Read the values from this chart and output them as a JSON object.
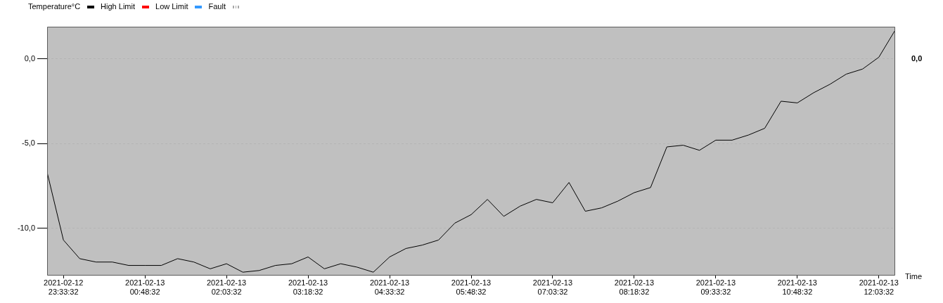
{
  "chart_data": {
    "type": "line",
    "xlabel": "Time",
    "legend": "top left",
    "grid": "y",
    "marker": "none",
    "x": [
      "2021-02-12T23:18:32",
      "2021-02-12T23:33:32",
      "2021-02-12T23:48:32",
      "2021-02-13T00:03:32",
      "2021-02-13T00:18:32",
      "2021-02-13T00:33:32",
      "2021-02-13T00:48:32",
      "2021-02-13T01:03:32",
      "2021-02-13T01:18:32",
      "2021-02-13T01:33:32",
      "2021-02-13T01:48:32",
      "2021-02-13T02:03:32",
      "2021-02-13T02:18:32",
      "2021-02-13T02:33:32",
      "2021-02-13T02:48:32",
      "2021-02-13T03:03:32",
      "2021-02-13T03:18:32",
      "2021-02-13T03:33:32",
      "2021-02-13T03:48:32",
      "2021-02-13T04:03:32",
      "2021-02-13T04:18:32",
      "2021-02-13T04:33:32",
      "2021-02-13T04:48:32",
      "2021-02-13T05:03:32",
      "2021-02-13T05:18:32",
      "2021-02-13T05:33:32",
      "2021-02-13T05:48:32",
      "2021-02-13T06:03:32",
      "2021-02-13T06:18:32",
      "2021-02-13T06:33:32",
      "2021-02-13T06:48:32",
      "2021-02-13T07:03:32",
      "2021-02-13T07:18:32",
      "2021-02-13T07:33:32",
      "2021-02-13T07:48:32",
      "2021-02-13T08:03:32",
      "2021-02-13T08:18:32",
      "2021-02-13T08:33:32",
      "2021-02-13T08:48:32",
      "2021-02-13T09:03:32",
      "2021-02-13T09:18:32",
      "2021-02-13T09:33:32",
      "2021-02-13T09:48:32",
      "2021-02-13T10:03:32",
      "2021-02-13T10:18:32",
      "2021-02-13T10:33:32",
      "2021-02-13T10:48:32",
      "2021-02-13T11:03:32",
      "2021-02-13T11:18:32",
      "2021-02-13T11:33:32",
      "2021-02-13T11:48:32",
      "2021-02-13T12:03:32",
      "2021-02-13T12:18:32"
    ],
    "series": [
      {
        "name": "Temperature°C",
        "color": "#000000",
        "values": [
          -6.7,
          -10.7,
          -11.8,
          -12.0,
          -12.0,
          -12.2,
          -12.2,
          -12.2,
          -11.8,
          -12.0,
          -12.4,
          -12.1,
          -12.6,
          -12.5,
          -12.2,
          -12.1,
          -11.7,
          -12.4,
          -12.1,
          -12.3,
          -12.6,
          -11.7,
          -11.2,
          -11.0,
          -10.7,
          -9.7,
          -9.2,
          -8.3,
          -9.3,
          -8.7,
          -8.3,
          -8.5,
          -7.3,
          -9.0,
          -8.8,
          -8.4,
          -7.9,
          -7.6,
          -5.2,
          -5.1,
          -5.4,
          -4.8,
          -4.8,
          -4.5,
          -4.1,
          -2.5,
          -2.6,
          -2.0,
          -1.5,
          -0.9,
          -0.6,
          0.1,
          1.7
        ]
      },
      {
        "name": "High Limit",
        "color": "#ff0000",
        "values": [
          null,
          null,
          null,
          null,
          null,
          null,
          null,
          null,
          null,
          null,
          null,
          null,
          null,
          null,
          null,
          null,
          null,
          null,
          null,
          null,
          null,
          null,
          null,
          null,
          null,
          null,
          null,
          null,
          null,
          null,
          null,
          null,
          null,
          null,
          null,
          null,
          null,
          null,
          null,
          null,
          null,
          null,
          null,
          null,
          null,
          null,
          null,
          null,
          null,
          null,
          null,
          null,
          null
        ]
      },
      {
        "name": "Low Limit",
        "color": "#3399ff",
        "values": [
          null,
          null,
          null,
          null,
          null,
          null,
          null,
          null,
          null,
          null,
          null,
          null,
          null,
          null,
          null,
          null,
          null,
          null,
          null,
          null,
          null,
          null,
          null,
          null,
          null,
          null,
          null,
          null,
          null,
          null,
          null,
          null,
          null,
          null,
          null,
          null,
          null,
          null,
          null,
          null,
          null,
          null,
          null,
          null,
          null,
          null,
          null,
          null,
          null,
          null,
          null,
          null,
          null
        ]
      },
      {
        "name": "Fault",
        "color": "#a8a8a8",
        "line_style": "dotted",
        "values": [
          null,
          null,
          null,
          null,
          null,
          null,
          null,
          null,
          null,
          null,
          null,
          null,
          null,
          null,
          null,
          null,
          null,
          null,
          null,
          null,
          null,
          null,
          null,
          null,
          null,
          null,
          null,
          null,
          null,
          null,
          null,
          null,
          null,
          null,
          null,
          null,
          null,
          null,
          null,
          null,
          null,
          null,
          null,
          null,
          null,
          null,
          null,
          null,
          null,
          null,
          null,
          null,
          null
        ]
      }
    ],
    "xlim": [
      "2021-02-12T23:18:32",
      "2021-02-13T12:18:32"
    ],
    "xticks": [
      {
        "value": "2021-02-12T23:33:32",
        "label": "2021-02-12\n23:33:32"
      },
      {
        "value": "2021-02-13T00:48:32",
        "label": "2021-02-13\n00:48:32"
      },
      {
        "value": "2021-02-13T02:03:32",
        "label": "2021-02-13\n02:03:32"
      },
      {
        "value": "2021-02-13T03:18:32",
        "label": "2021-02-13\n03:18:32"
      },
      {
        "value": "2021-02-13T04:33:32",
        "label": "2021-02-13\n04:33:32"
      },
      {
        "value": "2021-02-13T05:48:32",
        "label": "2021-02-13\n05:48:32"
      },
      {
        "value": "2021-02-13T07:03:32",
        "label": "2021-02-13\n07:03:32"
      },
      {
        "value": "2021-02-13T08:18:32",
        "label": "2021-02-13\n08:18:32"
      },
      {
        "value": "2021-02-13T09:33:32",
        "label": "2021-02-13\n09:33:32"
      },
      {
        "value": "2021-02-13T10:48:32",
        "label": "2021-02-13\n10:48:32"
      },
      {
        "value": "2021-02-13T12:03:32",
        "label": "2021-02-13\n12:03:32"
      }
    ],
    "ylim": [
      -12.8,
      1.9
    ],
    "yticks": [
      {
        "value": -10,
        "label": "-10,0"
      },
      {
        "value": -5,
        "label": "-5,0"
      },
      {
        "value": 0,
        "label": "0,0"
      }
    ],
    "annotations": [
      "0,0"
    ]
  }
}
